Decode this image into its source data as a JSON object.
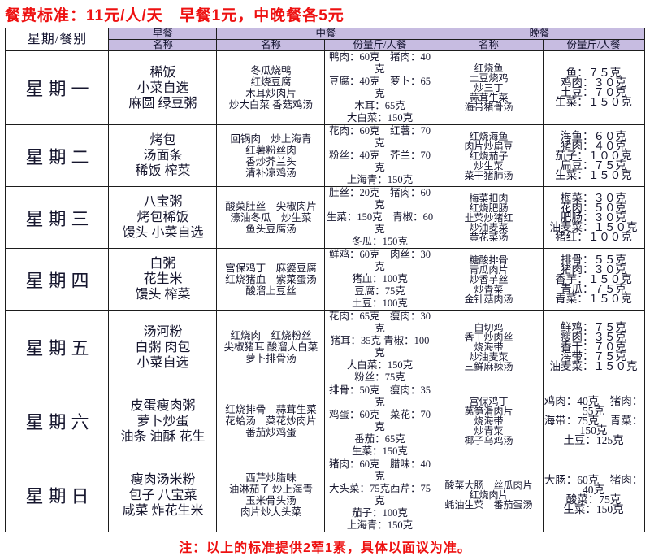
{
  "title": "餐费标准：11元/人/天　早餐1元，中晚餐各5元",
  "footer_note": "注：以上的标准提供2荤1素，具体以面议为准。",
  "colors": {
    "header_bg": "#c7bce1",
    "accent_red": "#ee1111",
    "border": "#1d1d1d"
  },
  "table": {
    "corner_header": "星期/餐别",
    "meal_headers": [
      "早餐",
      "中餐",
      "晚餐"
    ],
    "sub_headers": {
      "name": "名称",
      "portion": "份量斤/人餐"
    },
    "rows": [
      {
        "day": "星期一",
        "breakfast": [
          "稀饭",
          "小菜自选",
          "麻圆 绿豆粥"
        ],
        "lunch_names": [
          "冬瓜烧鸭",
          "红烧豆腐",
          "木耳炒肉片",
          "炒大白菜 香菇鸡汤"
        ],
        "lunch_portions": [
          "鸭肉：60克　猪肉：40克",
          "豆腐：40克　萝卜：65克",
          "木耳：65克",
          "大白菜：150克"
        ],
        "dinner_names": [
          "红烧鱼",
          "土豆烧鸡",
          "炒三丁",
          "蒜茸生菜",
          "海带猪骨汤"
        ],
        "dinner_portions": [
          "鱼：７５克",
          "鸡肉：３０克",
          "土豆：７０克",
          "生菜：１５０克"
        ]
      },
      {
        "day": "星期二",
        "breakfast": [
          "烤包",
          "汤面条",
          "稀饭 榨菜"
        ],
        "lunch_names": [
          "回锅肉　炒上海青",
          "红薯粉丝肉",
          "香炒芥兰头",
          "清补凉鸡汤"
        ],
        "lunch_portions": [
          "花肉：60克　红薯：70克",
          "粉丝：40克　芥兰：70克",
          "上海青：150克"
        ],
        "dinner_names": [
          "红烧海鱼",
          "肉片炒扁豆",
          "红烧茄子",
          "炒生菜",
          "菜干猪肺汤"
        ],
        "dinner_portions": [
          "海鱼：６０克",
          "猪肉：４０克",
          "茄子：１００克",
          "扁豆：７５克",
          "生菜：１５０克"
        ]
      },
      {
        "day": "星期三",
        "breakfast": [
          "八宝粥",
          "烤包稀饭",
          "馒头 小菜自选"
        ],
        "lunch_names": [
          "酸菜肚丝　尖椒肉片",
          "濠油冬瓜　炒生菜",
          "鱼头豆腐汤"
        ],
        "lunch_portions": [
          "肚丝：20克　猪肉：60克",
          "生菜：150克　青椒：60克",
          "冬瓜：150克"
        ],
        "dinner_names": [
          "梅菜扣肉",
          "红烧肥肠",
          "韭菜炒猪红",
          "炒油麦菜",
          "黄花菜汤"
        ],
        "dinner_portions": [
          "梅菜：３０克",
          "花肉：５０克",
          "肥肠：３０克",
          "油麦菜：１５０克",
          "猪红：１００克"
        ]
      },
      {
        "day": "星期四",
        "breakfast": [
          "白粥",
          "花生米",
          "馒头 榨菜"
        ],
        "lunch_names": [
          "宫保鸡丁　麻婆豆腐",
          "红烧猪血　紫菜蛋汤",
          "酸溜上豆丝"
        ],
        "lunch_portions": [
          "鲜鸡：60克　肉丝：30克",
          "猪血：100克",
          "豆腐：75克",
          "土豆：100克"
        ],
        "dinner_names": [
          "糖酸排骨",
          "青瓜肉片",
          "炒香芋丝",
          "炒青菜",
          "金针菇肉汤"
        ],
        "dinner_portions": [
          "排骨：５５克",
          "猪肉：３０克",
          "香芋：１５０克",
          "青瓜：７５克",
          "青菜：１５０克"
        ]
      },
      {
        "day": "星期五",
        "breakfast": [
          "汤河粉",
          "白粥 肉包",
          "小菜自选"
        ],
        "lunch_names": [
          "红烧肉　红烧粉丝",
          "尖椒猪耳 酸溜大白菜",
          "萝卜排骨汤"
        ],
        "lunch_portions": [
          "花肉：65克　瘦肉：30克",
          "猪耳：35克 青椒：100克",
          "大白菜：150克",
          "粉丝：75克"
        ],
        "dinner_names": [
          "白切鸡",
          "香干炒肉丝",
          "烧海带",
          "炒油麦菜",
          "三鲜麻辣汤"
        ],
        "dinner_portions": [
          "鲜鸡：７５克",
          "瘦肉：３５克",
          "香干：７０克",
          "海带：７５克",
          "油麦菜：１５０克"
        ]
      },
      {
        "day": "星期六",
        "breakfast": [
          "皮蛋瘦肉粥",
          "萝卜炒蛋",
          "油条 油酥 花生"
        ],
        "lunch_names": [
          "红烧排骨　蒜茸生菜",
          "花蛤汤　菜花炒肉片",
          "番茄炒鸡蛋"
        ],
        "lunch_portions": [
          "排骨：50克　瘦肉：35克",
          "鸡蛋：60克　菜花：70克",
          "番茄：65克",
          "生菜：150克"
        ],
        "dinner_names": [
          "宫保鸡丁",
          "莴笋滑肉片",
          "烧海带",
          "炒青菜",
          "椰子乌鸡汤"
        ],
        "dinner_portions": [
          "鸡肉：40克　猪肉：55克",
          "海带：75克　青菜：150克",
          "土豆：125克"
        ]
      },
      {
        "day": "星期日",
        "breakfast": [
          "瘦肉汤米粉",
          "包子 八宝菜",
          "咸菜 炸花生米"
        ],
        "lunch_names": [
          "西芹炒腊味",
          "油淋茄子 炒上海青",
          "玉米骨头汤",
          "肉片炒大头菜"
        ],
        "lunch_portions": [
          "猪肉：60克　腊味：40克",
          "大头菜：75克西芹：75克",
          "茄子：100克",
          "上海青：150克"
        ],
        "dinner_names": [
          "酸菜大肠　丝瓜肉片",
          "红烧肉片",
          "蚝油生菜　番茄蛋汤"
        ],
        "dinner_portions": [
          "大肠：60克　猪肉：40克",
          "酸菜：75克",
          "生菜：150克"
        ]
      }
    ]
  }
}
